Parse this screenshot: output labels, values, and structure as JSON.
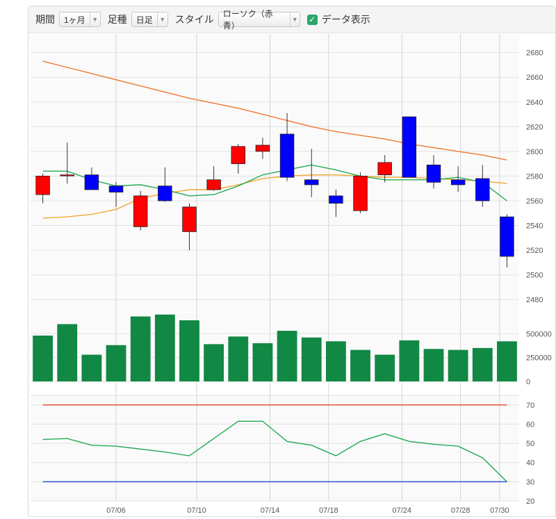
{
  "toolbar": {
    "period_label": "期間",
    "period_value": "1ヶ月",
    "bar_label": "足種",
    "bar_value": "日足",
    "style_label": "スタイル",
    "style_value": "ローソク（赤青）",
    "data_display_label": "データ表示",
    "data_display_checked": true
  },
  "colors": {
    "up": "#ff0000",
    "down": "#0000ff",
    "volume": "#118844",
    "ma_short": "#22aa55",
    "ma_mid": "#f0a830",
    "ma_long": "#f07830",
    "rsi": "#22aa55",
    "upper_line": "#dd4422",
    "lower_line": "#2255cc"
  },
  "chart_data": [
    {
      "type": "candlestick",
      "x_tick_labels": [
        "07/06",
        "07/10",
        "07/14",
        "07/18",
        "07/24",
        "07/28",
        "07/30"
      ],
      "x_tick_slots": [
        3.5,
        6.8,
        9.8,
        12.2,
        15.2,
        17.6,
        19.2
      ],
      "ylim": [
        2470,
        2695
      ],
      "y_ticks": [
        2480,
        2500,
        2520,
        2540,
        2560,
        2580,
        2600,
        2620,
        2640,
        2660,
        2680
      ],
      "candles": [
        {
          "o": 2565,
          "h": 2582,
          "l": 2558,
          "c": 2580
        },
        {
          "o": 2581,
          "h": 2607,
          "l": 2574,
          "c": 2581
        },
        {
          "o": 2581,
          "h": 2587,
          "l": 2569,
          "c": 2569
        },
        {
          "o": 2572,
          "h": 2575,
          "l": 2555,
          "c": 2567
        },
        {
          "o": 2539,
          "h": 2568,
          "l": 2536,
          "c": 2564
        },
        {
          "o": 2572,
          "h": 2587,
          "l": 2559,
          "c": 2560
        },
        {
          "o": 2535,
          "h": 2558,
          "l": 2520,
          "c": 2555
        },
        {
          "o": 2569,
          "h": 2588,
          "l": 2568,
          "c": 2577
        },
        {
          "o": 2590,
          "h": 2606,
          "l": 2582,
          "c": 2604
        },
        {
          "o": 2600,
          "h": 2611,
          "l": 2594,
          "c": 2605
        },
        {
          "o": 2614,
          "h": 2631,
          "l": 2576,
          "c": 2579
        },
        {
          "o": 2577,
          "h": 2602,
          "l": 2563,
          "c": 2573
        },
        {
          "o": 2564,
          "h": 2569,
          "l": 2547,
          "c": 2558
        },
        {
          "o": 2552,
          "h": 2583,
          "l": 2550,
          "c": 2580
        },
        {
          "o": 2581,
          "h": 2597,
          "l": 2575,
          "c": 2591
        },
        {
          "o": 2628,
          "h": 2628,
          "l": 2579,
          "c": 2579
        },
        {
          "o": 2589,
          "h": 2597,
          "l": 2570,
          "c": 2575
        },
        {
          "o": 2577,
          "h": 2588,
          "l": 2567,
          "c": 2573
        },
        {
          "o": 2578,
          "h": 2589,
          "l": 2555,
          "c": 2560
        },
        {
          "o": 2547,
          "h": 2549,
          "l": 2506,
          "c": 2515
        }
      ],
      "ma_short": [
        2584,
        2584,
        2577,
        2572,
        2573,
        2569,
        2564,
        2565,
        2572,
        2581,
        2585,
        2589,
        2585,
        2580,
        2577,
        2577,
        2577,
        2579,
        2575,
        2560
      ],
      "ma_mid": [
        2546,
        2547,
        2549,
        2553,
        2562,
        2566,
        2569,
        2569,
        2573,
        2578,
        2580,
        2581,
        2581,
        2580,
        2579,
        2579,
        2578,
        2577,
        2576,
        2574
      ],
      "ma_long": [
        2673,
        2668,
        2663,
        2658,
        2653,
        2648,
        2643,
        2639,
        2635,
        2630,
        2625,
        2620,
        2616,
        2613,
        2610,
        2606,
        2603,
        2600,
        2597,
        2593
      ]
    },
    {
      "type": "bar",
      "ylim": [
        0,
        720000
      ],
      "y_ticks": [
        0,
        250000,
        500000
      ],
      "values": [
        480000,
        600000,
        280000,
        380000,
        680000,
        700000,
        640000,
        390000,
        470000,
        400000,
        530000,
        460000,
        420000,
        330000,
        280000,
        430000,
        340000,
        330000,
        350000,
        420000
      ]
    },
    {
      "type": "line",
      "ylim": [
        20,
        75
      ],
      "y_ticks": [
        20,
        30,
        40,
        50,
        60,
        70
      ],
      "upper": 70,
      "lower": 30,
      "values": [
        52,
        52.5,
        49,
        48.5,
        47,
        45.5,
        43.5,
        52.5,
        61.5,
        61.5,
        51,
        49,
        43.5,
        51,
        55,
        51,
        49.5,
        48.5,
        42.5,
        30
      ]
    }
  ]
}
